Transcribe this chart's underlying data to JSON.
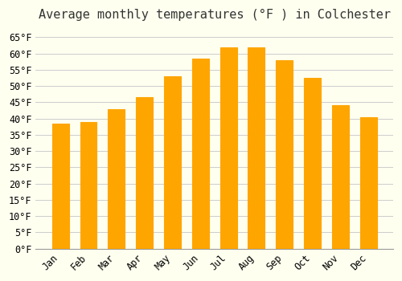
{
  "title": "Average monthly temperatures (°F ) in Colchester",
  "months": [
    "Jan",
    "Feb",
    "Mar",
    "Apr",
    "May",
    "Jun",
    "Jul",
    "Aug",
    "Sep",
    "Oct",
    "Nov",
    "Dec"
  ],
  "values": [
    38.5,
    39.0,
    43.0,
    46.5,
    53.0,
    58.5,
    62.0,
    62.0,
    58.0,
    52.5,
    44.0,
    40.5
  ],
  "bar_color": "#FFA500",
  "bar_edge_color": "#E08000",
  "background_color": "#FFFFF0",
  "grid_color": "#CCCCCC",
  "ylim": [
    0,
    68
  ],
  "yticks": [
    0,
    5,
    10,
    15,
    20,
    25,
    30,
    35,
    40,
    45,
    50,
    55,
    60,
    65
  ],
  "title_fontsize": 11,
  "tick_fontsize": 8.5,
  "font_family": "monospace"
}
